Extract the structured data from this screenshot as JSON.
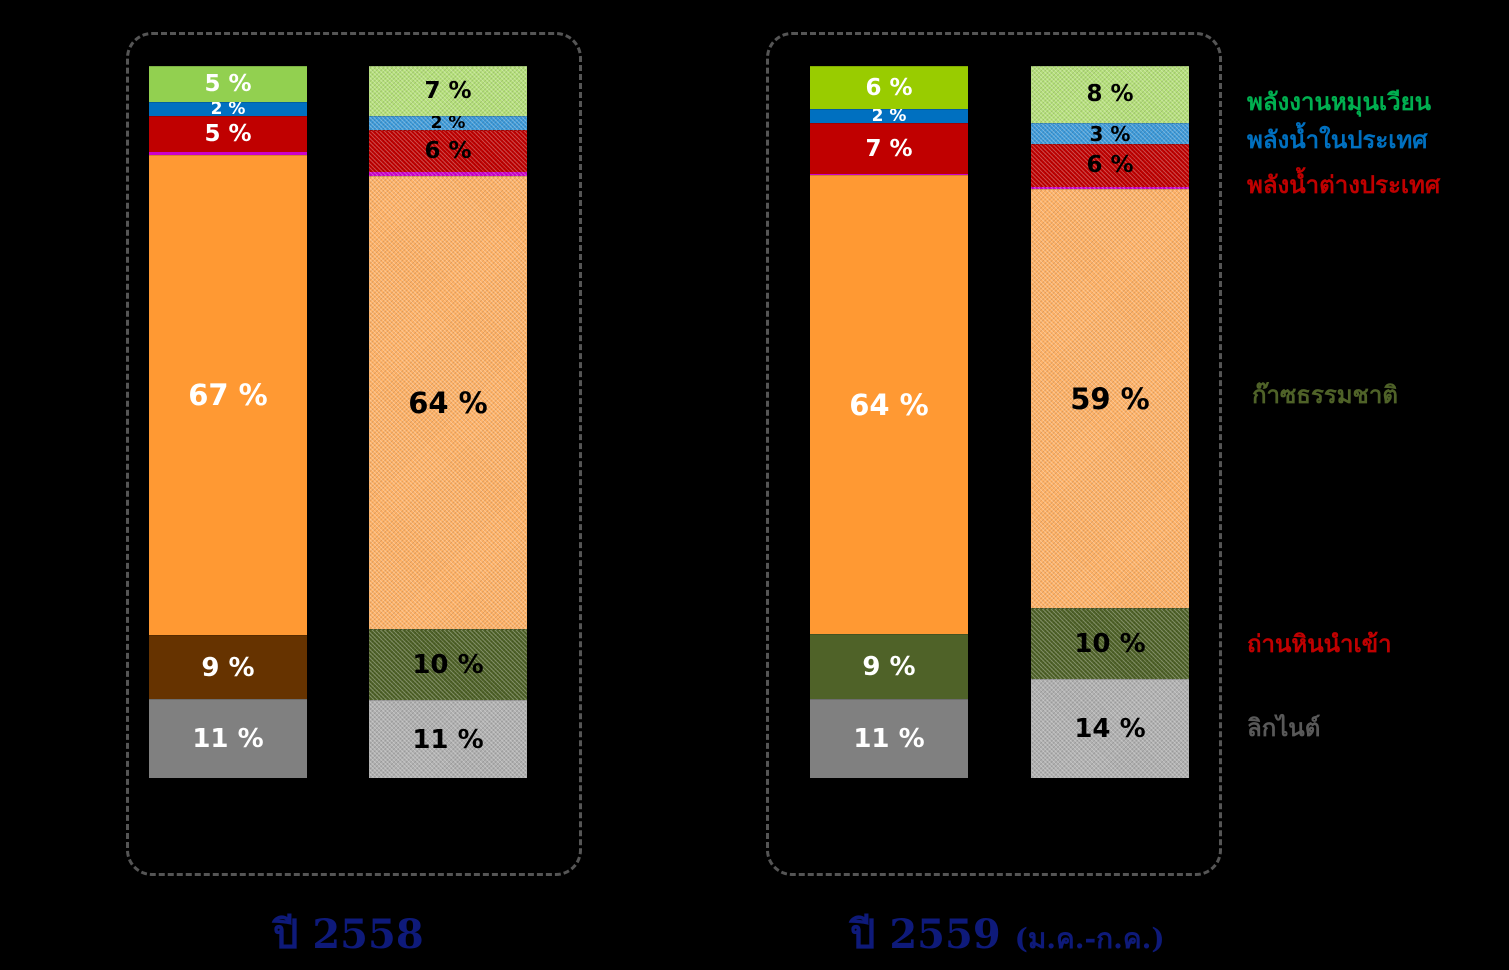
{
  "chart_data": {
    "type": "stacked-bar",
    "unit": "%",
    "series": [
      {
        "key": "lignite",
        "name": "ลิกไนต์",
        "color": "#808080",
        "hatch_color": "#b0b0b0",
        "legend_color": "#595959"
      },
      {
        "key": "coal",
        "name": "ถ่านหินนำเข้า",
        "color": "#663300",
        "hatch_color": "#8a5a2b",
        "legend_color": "#c00000"
      },
      {
        "key": "gas",
        "name": "ก๊าซธรรมชาติ",
        "color": "#ff9933",
        "hatch_color": "#ffb266",
        "legend_color": "#4f6228"
      },
      {
        "key": "other",
        "name": "",
        "color": "#cc00cc",
        "hatch_color": "#cc00cc",
        "legend_color": "#cc00cc"
      },
      {
        "key": "hydro_foreign",
        "name": "พลังน้ำต่างประเทศ",
        "color": "#c00000",
        "hatch_color": "#d33333",
        "legend_color": "#c00000"
      },
      {
        "key": "hydro_domestic",
        "name": "พลังน้ำในประเทศ",
        "color": "#0070c0",
        "hatch_color": "#3d9ad9",
        "legend_color": "#0070c0"
      },
      {
        "key": "renewable",
        "name": "พลังงานหมุนเวียน",
        "color": "#92d050",
        "hatch_color": "#b5e07a",
        "legend_color": "#00b050"
      }
    ],
    "groups": [
      {
        "year": "ปี 2558",
        "period": "",
        "bars": [
          {
            "style": "solid",
            "segments": [
              {
                "series": "lignite",
                "value": 11,
                "label": "11 %",
                "fill": "#808080",
                "text_color": "#ffffff"
              },
              {
                "series": "coal",
                "value": 9,
                "label": "9 %",
                "fill": "#663300",
                "text_color": "#ffffff"
              },
              {
                "series": "gas",
                "value": 67,
                "label": "67 %",
                "fill": "#ff9933",
                "text_color": "#ffffff"
              },
              {
                "series": "other",
                "value": 0.5,
                "label": "",
                "fill": "#cc00cc",
                "text_color": "#ffffff"
              },
              {
                "series": "hydro_foreign",
                "value": 5,
                "label": "5 %",
                "fill": "#c00000",
                "text_color": "#ffffff"
              },
              {
                "series": "hydro_domestic",
                "value": 2,
                "label": "2 %",
                "fill": "#0070c0",
                "text_color": "#ffffff"
              },
              {
                "series": "renewable",
                "value": 5,
                "label": "5 %",
                "fill": "#92d050",
                "text_color": "#ffffff"
              }
            ]
          },
          {
            "style": "hatched",
            "segments": [
              {
                "series": "lignite",
                "value": 11,
                "label": "11 %",
                "fill": "#b0b0b0",
                "text_color": "#000000"
              },
              {
                "series": "coal",
                "value": 10,
                "label": "10 %",
                "fill": "#4f6228",
                "text_color": "#000000"
              },
              {
                "series": "gas",
                "value": 64,
                "label": "64 %",
                "fill": "#ffb266",
                "text_color": "#000000"
              },
              {
                "series": "other",
                "value": 0.6,
                "label": "",
                "fill": "#cc00cc",
                "text_color": "#000000"
              },
              {
                "series": "hydro_foreign",
                "value": 6,
                "label": "6 %",
                "fill": "#c00000",
                "text_color": "#000000"
              },
              {
                "series": "hydro_domestic",
                "value": 2,
                "label": "2 %",
                "fill": "#3d9ad9",
                "text_color": "#000000"
              },
              {
                "series": "renewable",
                "value": 7,
                "label": "7 %",
                "fill": "#b5e07a",
                "text_color": "#000000"
              }
            ]
          }
        ]
      },
      {
        "year": "ปี 2559",
        "period": "(ม.ค.-ก.ค.)",
        "bars": [
          {
            "style": "solid",
            "segments": [
              {
                "series": "lignite",
                "value": 11,
                "label": "11 %",
                "fill": "#808080",
                "text_color": "#ffffff"
              },
              {
                "series": "coal",
                "value": 9,
                "label": "9 %",
                "fill": "#4f6228",
                "text_color": "#ffffff"
              },
              {
                "series": "gas",
                "value": 64,
                "label": "64 %",
                "fill": "#ff9933",
                "text_color": "#ffffff"
              },
              {
                "series": "other",
                "value": 0.2,
                "label": "",
                "fill": "#cc00cc",
                "text_color": "#ffffff"
              },
              {
                "series": "hydro_foreign",
                "value": 7,
                "label": "7 %",
                "fill": "#c00000",
                "text_color": "#ffffff"
              },
              {
                "series": "hydro_domestic",
                "value": 2,
                "label": "2 %",
                "fill": "#0070c0",
                "text_color": "#ffffff"
              },
              {
                "series": "renewable",
                "value": 6,
                "label": "6 %",
                "fill": "#99cc00",
                "text_color": "#ffffff"
              }
            ]
          },
          {
            "style": "hatched",
            "segments": [
              {
                "series": "lignite",
                "value": 14,
                "label": "14 %",
                "fill": "#b0b0b0",
                "text_color": "#000000"
              },
              {
                "series": "coal",
                "value": 10,
                "label": "10 %",
                "fill": "#4f6228",
                "text_color": "#000000"
              },
              {
                "series": "gas",
                "value": 59,
                "label": "59 %",
                "fill": "#ffb266",
                "text_color": "#000000"
              },
              {
                "series": "other",
                "value": 0.4,
                "label": "",
                "fill": "#cc00cc",
                "text_color": "#000000"
              },
              {
                "series": "hydro_foreign",
                "value": 6,
                "label": "6 %",
                "fill": "#c00000",
                "text_color": "#000000"
              },
              {
                "series": "hydro_domestic",
                "value": 3,
                "label": "3 %",
                "fill": "#3d9ad9",
                "text_color": "#000000"
              },
              {
                "series": "renewable",
                "value": 8,
                "label": "8 %",
                "fill": "#b5e07a",
                "text_color": "#000000"
              }
            ]
          }
        ]
      }
    ],
    "legend": [
      {
        "label": "พลังงานหมุนเวียน",
        "color": "#00b050"
      },
      {
        "label": "พลังน้ำในประเทศ",
        "color": "#0070c0"
      },
      {
        "label": "พลังน้ำต่างประเทศ",
        "color": "#c00000"
      },
      {
        "label": "ก๊าซธรรมชาติ",
        "color": "#4f6228"
      },
      {
        "label": "ถ่านหินนำเข้า",
        "color": "#c00000"
      },
      {
        "label": "ลิกไนต์",
        "color": "#595959"
      }
    ]
  }
}
